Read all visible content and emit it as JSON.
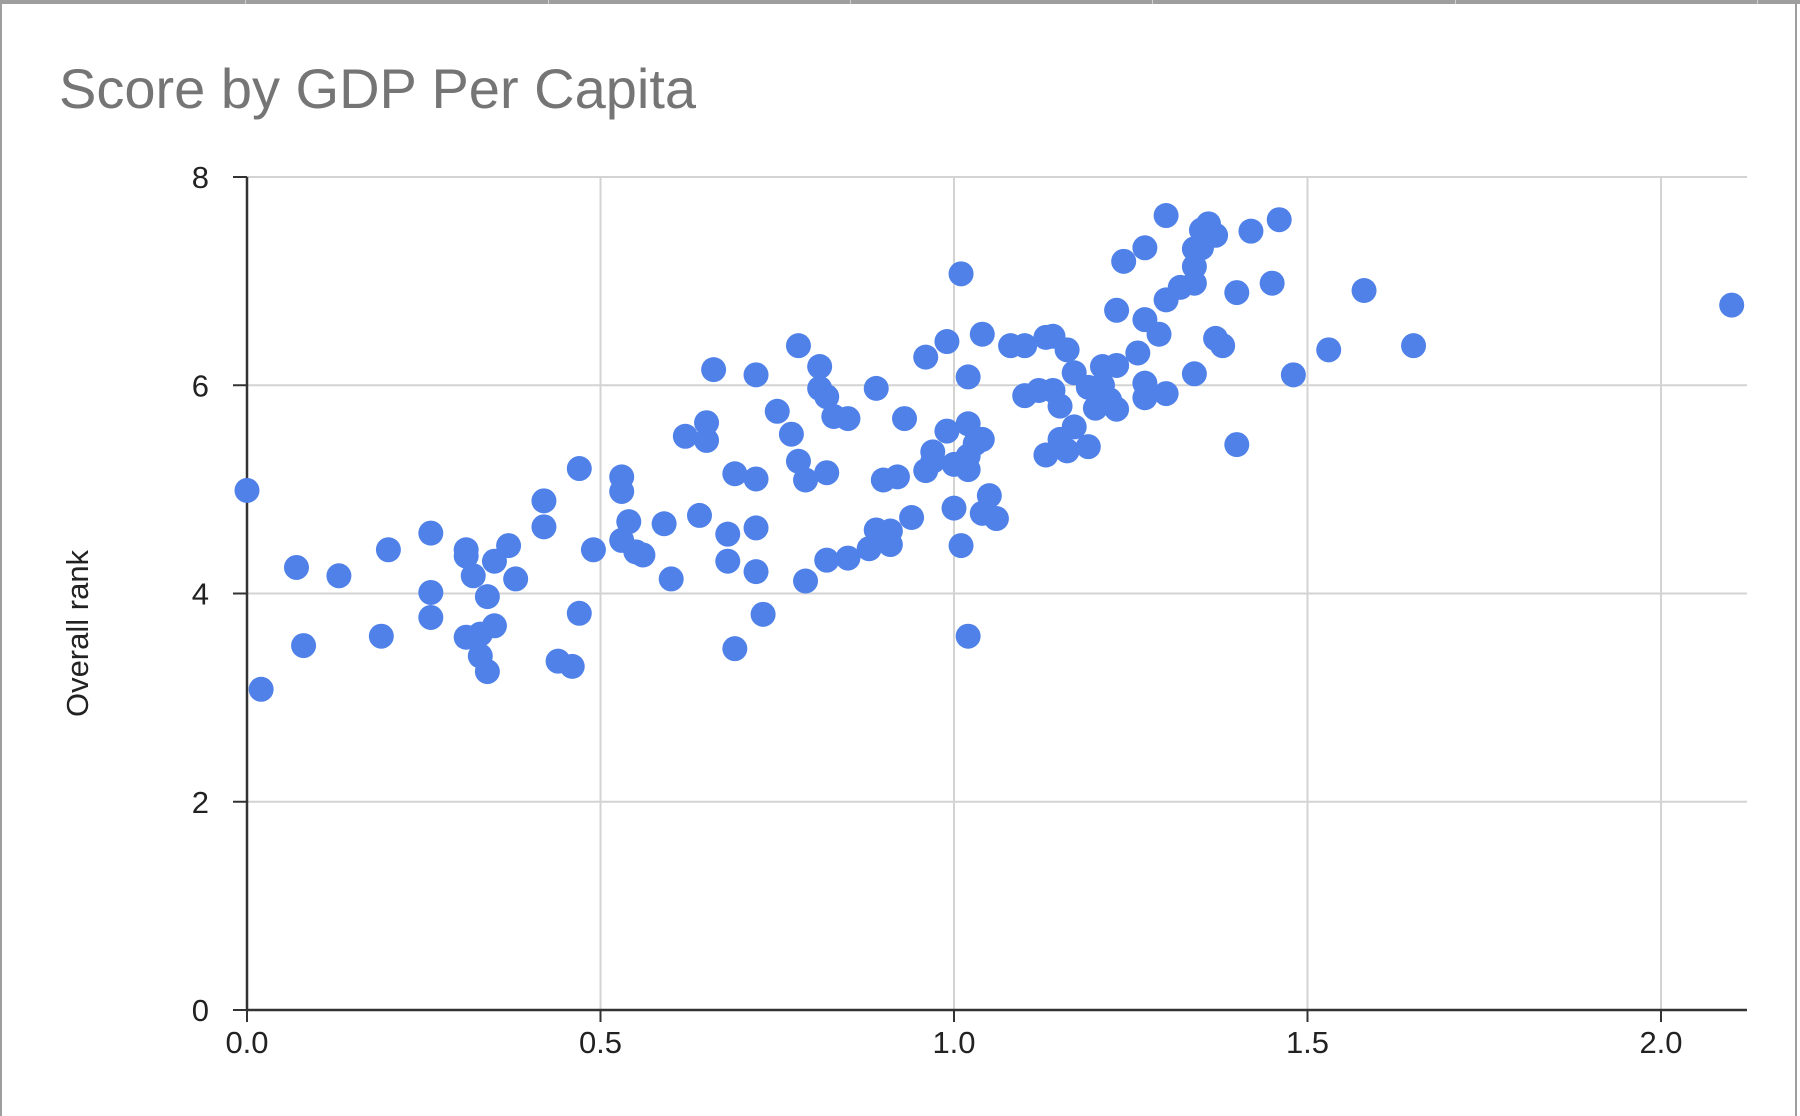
{
  "chart_data": {
    "type": "scatter",
    "title": "Score by GDP Per Capita",
    "xlabel": "",
    "ylabel": "Overall rank",
    "xlim": [
      0,
      2.1
    ],
    "ylim": [
      0,
      8
    ],
    "x_ticks": [
      "0.0",
      "0.5",
      "1.0",
      "1.5",
      "2.0"
    ],
    "y_ticks": [
      "0",
      "2",
      "4",
      "6",
      "8"
    ],
    "grid": true,
    "legend": "none",
    "colors": {
      "points": "#4f81e9",
      "grid": "#d3d3d3",
      "axis": "#333333",
      "title": "#757575"
    },
    "series": [
      {
        "points": [
          [
            1.3,
            7.63
          ],
          [
            1.36,
            7.55
          ],
          [
            1.35,
            7.49
          ],
          [
            1.37,
            7.44
          ],
          [
            1.35,
            7.32
          ],
          [
            1.34,
            7.31
          ],
          [
            1.34,
            7.14
          ],
          [
            1.46,
            7.59
          ],
          [
            1.42,
            7.48
          ],
          [
            1.27,
            7.32
          ],
          [
            1.24,
            7.19
          ],
          [
            1.01,
            7.07
          ],
          [
            1.34,
            6.98
          ],
          [
            1.45,
            6.98
          ],
          [
            1.58,
            6.91
          ],
          [
            1.4,
            6.89
          ],
          [
            1.32,
            6.94
          ],
          [
            1.3,
            6.82
          ],
          [
            2.1,
            6.77
          ],
          [
            1.23,
            6.72
          ],
          [
            1.27,
            6.63
          ],
          [
            1.29,
            6.49
          ],
          [
            1.37,
            6.45
          ],
          [
            1.38,
            6.38
          ],
          [
            1.65,
            6.38
          ],
          [
            1.53,
            6.34
          ],
          [
            1.04,
            6.49
          ],
          [
            1.08,
            6.38
          ],
          [
            1.1,
            6.38
          ],
          [
            1.13,
            6.46
          ],
          [
            1.14,
            6.47
          ],
          [
            1.16,
            6.34
          ],
          [
            0.99,
            6.42
          ],
          [
            0.96,
            6.27
          ],
          [
            0.78,
            6.38
          ],
          [
            0.81,
            6.18
          ],
          [
            0.66,
            6.15
          ],
          [
            0.72,
            6.1
          ],
          [
            1.02,
            6.08
          ],
          [
            1.17,
            6.12
          ],
          [
            1.21,
            6.18
          ],
          [
            1.23,
            6.19
          ],
          [
            1.26,
            6.31
          ],
          [
            1.34,
            6.11
          ],
          [
            1.48,
            6.1
          ],
          [
            1.1,
            5.9
          ],
          [
            1.12,
            5.95
          ],
          [
            1.14,
            5.95
          ],
          [
            1.15,
            5.8
          ],
          [
            1.19,
            5.98
          ],
          [
            1.21,
            6.0
          ],
          [
            1.22,
            5.86
          ],
          [
            1.2,
            5.78
          ],
          [
            1.23,
            5.77
          ],
          [
            1.27,
            5.88
          ],
          [
            1.27,
            6.02
          ],
          [
            1.3,
            5.92
          ],
          [
            0.81,
            5.97
          ],
          [
            0.82,
            5.89
          ],
          [
            0.89,
            5.97
          ],
          [
            0.83,
            5.7
          ],
          [
            0.85,
            5.68
          ],
          [
            0.75,
            5.75
          ],
          [
            0.65,
            5.64
          ],
          [
            0.62,
            5.51
          ],
          [
            0.65,
            5.47
          ],
          [
            0.77,
            5.53
          ],
          [
            0.93,
            5.68
          ],
          [
            0.97,
            5.36
          ],
          [
            0.99,
            5.56
          ],
          [
            1.02,
            5.63
          ],
          [
            1.03,
            5.44
          ],
          [
            1.04,
            5.48
          ],
          [
            1.02,
            5.32
          ],
          [
            1.0,
            5.24
          ],
          [
            0.96,
            5.18
          ],
          [
            0.97,
            5.27
          ],
          [
            1.02,
            5.19
          ],
          [
            1.13,
            5.33
          ],
          [
            1.15,
            5.48
          ],
          [
            1.16,
            5.37
          ],
          [
            1.17,
            5.6
          ],
          [
            1.19,
            5.41
          ],
          [
            1.4,
            5.43
          ],
          [
            0.78,
            5.27
          ],
          [
            0.79,
            5.09
          ],
          [
            0.82,
            5.16
          ],
          [
            0.69,
            5.15
          ],
          [
            0.72,
            5.1
          ],
          [
            0.9,
            5.09
          ],
          [
            0.92,
            5.12
          ],
          [
            0.53,
            5.12
          ],
          [
            0.53,
            4.98
          ],
          [
            0.47,
            5.2
          ],
          [
            0.42,
            4.89
          ],
          [
            0.42,
            4.64
          ],
          [
            0.49,
            4.42
          ],
          [
            0.54,
            4.69
          ],
          [
            0.53,
            4.51
          ],
          [
            0.55,
            4.4
          ],
          [
            0.56,
            4.37
          ],
          [
            0.59,
            4.67
          ],
          [
            0.64,
            4.75
          ],
          [
            0.68,
            4.57
          ],
          [
            0.72,
            4.63
          ],
          [
            0.68,
            4.31
          ],
          [
            0.72,
            4.21
          ],
          [
            0.6,
            4.14
          ],
          [
            1.0,
            4.82
          ],
          [
            1.05,
            4.94
          ],
          [
            1.04,
            4.77
          ],
          [
            1.06,
            4.72
          ],
          [
            0.94,
            4.73
          ],
          [
            0.91,
            4.6
          ],
          [
            0.89,
            4.61
          ],
          [
            0.91,
            4.47
          ],
          [
            0.88,
            4.43
          ],
          [
            0.85,
            4.34
          ],
          [
            0.82,
            4.32
          ],
          [
            0.79,
            4.12
          ],
          [
            1.01,
            4.46
          ],
          [
            0.73,
            3.8
          ],
          [
            0.69,
            3.47
          ],
          [
            1.02,
            3.59
          ],
          [
            0.0,
            4.99
          ],
          [
            0.07,
            4.25
          ],
          [
            0.13,
            4.17
          ],
          [
            0.2,
            4.42
          ],
          [
            0.26,
            4.58
          ],
          [
            0.31,
            4.36
          ],
          [
            0.31,
            4.42
          ],
          [
            0.32,
            4.17
          ],
          [
            0.35,
            4.31
          ],
          [
            0.37,
            4.46
          ],
          [
            0.38,
            4.14
          ],
          [
            0.34,
            3.97
          ],
          [
            0.26,
            4.01
          ],
          [
            0.26,
            3.77
          ],
          [
            0.19,
            3.59
          ],
          [
            0.08,
            3.5
          ],
          [
            0.02,
            3.08
          ],
          [
            0.31,
            3.58
          ],
          [
            0.33,
            3.61
          ],
          [
            0.35,
            3.69
          ],
          [
            0.33,
            3.4
          ],
          [
            0.34,
            3.25
          ],
          [
            0.44,
            3.35
          ],
          [
            0.46,
            3.3
          ],
          [
            0.47,
            3.81
          ]
        ]
      }
    ]
  }
}
